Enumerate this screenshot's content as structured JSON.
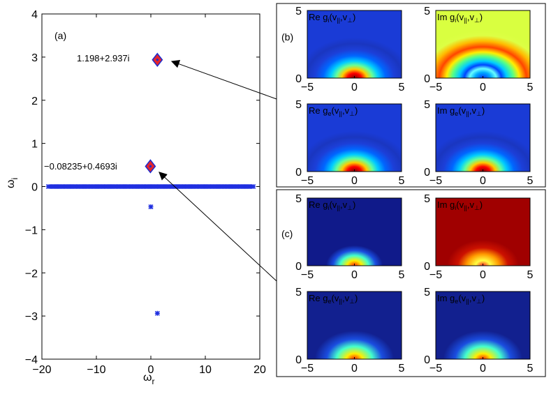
{
  "chart_data": [
    {
      "type": "scatter",
      "panel_label": "(a)",
      "xlabel_base": "ω",
      "xlabel_sub": "r",
      "ylabel_base": "ω",
      "ylabel_sub": "i",
      "xlim": [
        -20,
        20
      ],
      "ylim": [
        -4,
        4
      ],
      "xticks": [
        "−20",
        "−10",
        "0",
        "10",
        "20"
      ],
      "yticks": [
        "4",
        "3",
        "2",
        "1",
        "0",
        "−1",
        "−2",
        "−3",
        "−4"
      ],
      "continuum": {
        "x_min": -18.8,
        "x_max": 18.8,
        "y": 0,
        "count": 140
      },
      "points": [
        {
          "x": 0,
          "y": -0.4693
        },
        {
          "x": 1.198,
          "y": -2.937
        }
      ],
      "highlighted": [
        {
          "x": 1.198,
          "y": 2.937,
          "label": "1.198+2.937i"
        },
        {
          "x": -0.08235,
          "y": 0.4693,
          "label": "−0.08235+0.4693i"
        }
      ],
      "colors": {
        "points": "#1f2fe0",
        "marker_fill": "#e4262c",
        "marker_center": "#1a2bd0"
      }
    },
    {
      "type": "heatmap",
      "panel_label": "(b)",
      "xlim": [
        -5,
        5
      ],
      "ylim": [
        0,
        5
      ],
      "subplots": [
        {
          "base": "Re g",
          "sub": "i",
          "args": "(v",
          "sub2": "||",
          "args2": ",v",
          "sub3": "⊥",
          "close": ")"
        },
        {
          "base": "Im g",
          "sub": "i",
          "args": "(v",
          "sub2": "||",
          "args2": ",v",
          "sub3": "⊥",
          "close": ")"
        },
        {
          "base": "Re g",
          "sub": "e",
          "args": "(v",
          "sub2": "||",
          "args2": ",v",
          "sub3": "⊥",
          "close": ")"
        },
        {
          "base": "Im g",
          "sub": "e",
          "args": "(v",
          "sub2": "||",
          "args2": ",v",
          "sub3": "⊥",
          "close": ")"
        }
      ],
      "xticks": [
        "−5",
        "0",
        "5"
      ],
      "yticks": [
        "5",
        "0"
      ]
    },
    {
      "type": "heatmap",
      "panel_label": "(c)",
      "xlim": [
        -5,
        5
      ],
      "ylim": [
        0,
        5
      ],
      "subplots": [
        {
          "base": "Re g",
          "sub": "i",
          "args": "(v",
          "sub2": "||",
          "args2": ",v",
          "sub3": "⊥",
          "close": ")"
        },
        {
          "base": "Im g",
          "sub": "i",
          "args": "(v",
          "sub2": "||",
          "args2": ",v",
          "sub3": "⊥",
          "close": ")"
        },
        {
          "base": "Re g",
          "sub": "e",
          "args": "(v",
          "sub2": "||",
          "args2": ",v",
          "sub3": "⊥",
          "close": ")"
        },
        {
          "base": "Im g",
          "sub": "e",
          "args": "(v",
          "sub2": "||",
          "args2": ",v",
          "sub3": "⊥",
          "close": ")"
        }
      ],
      "xticks": [
        "−5",
        "0",
        "5"
      ],
      "yticks": [
        "5",
        "0"
      ]
    }
  ]
}
